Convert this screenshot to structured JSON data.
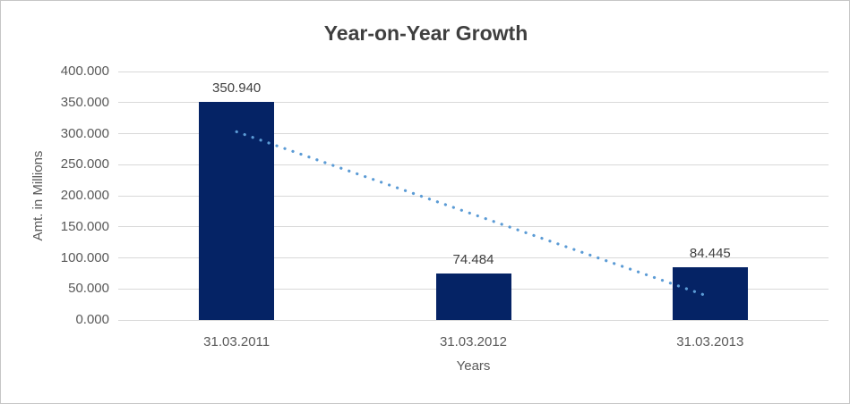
{
  "chart_data": {
    "type": "bar",
    "title": "Year-on-Year Growth",
    "xlabel": "Years",
    "ylabel": "Amt. in Millions",
    "categories": [
      "31.03.2011",
      "31.03.2012",
      "31.03.2013"
    ],
    "values": [
      350.94,
      74.484,
      84.445
    ],
    "value_labels": [
      "350.940",
      "74.484",
      "84.445"
    ],
    "ylim": [
      0,
      400
    ],
    "ytick_step": 50,
    "ytick_labels": [
      "0.000",
      "50.000",
      "100.000",
      "150.000",
      "200.000",
      "250.000",
      "300.000",
      "350.000",
      "400.000"
    ],
    "grid": true,
    "legend": false,
    "colors": {
      "bar": "#052365",
      "gridline": "#d9d9d9",
      "trendline": "#5B9BD5",
      "title_text": "#3f3f3f",
      "tick_text": "#595959",
      "label_text": "#404040"
    },
    "trendline": {
      "style": "dotted",
      "shape": "linear",
      "color": "#5B9BD5",
      "start_value": 303,
      "end_value": 37
    }
  }
}
